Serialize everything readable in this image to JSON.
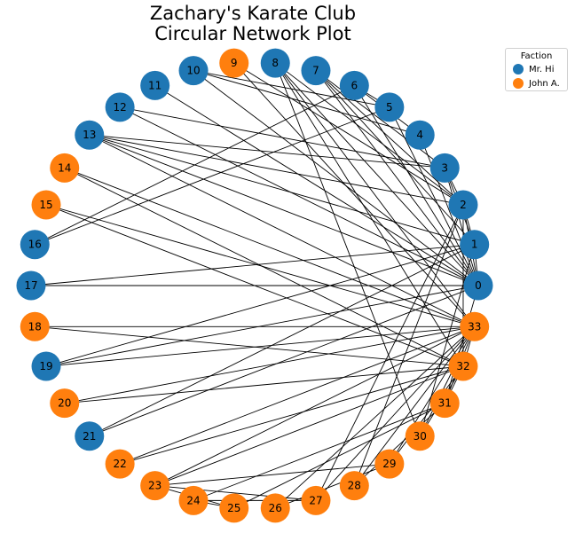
{
  "title": {
    "line1": "Zachary's Karate Club",
    "line2": "Circular Network Plot"
  },
  "colors": {
    "mr_hi": "#1f77b4",
    "john_a": "#ff7f0e",
    "edge": "#000000"
  },
  "legend": {
    "title": "Faction",
    "items": [
      {
        "label": "Mr. Hi",
        "color": "#1f77b4"
      },
      {
        "label": "John A.",
        "color": "#ff7f0e"
      }
    ]
  },
  "graph": {
    "layout": "circular",
    "nodes": [
      {
        "id": "0",
        "faction": "mr_hi"
      },
      {
        "id": "1",
        "faction": "mr_hi"
      },
      {
        "id": "2",
        "faction": "mr_hi"
      },
      {
        "id": "3",
        "faction": "mr_hi"
      },
      {
        "id": "4",
        "faction": "mr_hi"
      },
      {
        "id": "5",
        "faction": "mr_hi"
      },
      {
        "id": "6",
        "faction": "mr_hi"
      },
      {
        "id": "7",
        "faction": "mr_hi"
      },
      {
        "id": "8",
        "faction": "mr_hi"
      },
      {
        "id": "9",
        "faction": "john_a"
      },
      {
        "id": "10",
        "faction": "mr_hi"
      },
      {
        "id": "11",
        "faction": "mr_hi"
      },
      {
        "id": "12",
        "faction": "mr_hi"
      },
      {
        "id": "13",
        "faction": "mr_hi"
      },
      {
        "id": "14",
        "faction": "john_a"
      },
      {
        "id": "15",
        "faction": "john_a"
      },
      {
        "id": "16",
        "faction": "mr_hi"
      },
      {
        "id": "17",
        "faction": "mr_hi"
      },
      {
        "id": "18",
        "faction": "john_a"
      },
      {
        "id": "19",
        "faction": "mr_hi"
      },
      {
        "id": "20",
        "faction": "john_a"
      },
      {
        "id": "21",
        "faction": "mr_hi"
      },
      {
        "id": "22",
        "faction": "john_a"
      },
      {
        "id": "23",
        "faction": "john_a"
      },
      {
        "id": "24",
        "faction": "john_a"
      },
      {
        "id": "25",
        "faction": "john_a"
      },
      {
        "id": "26",
        "faction": "john_a"
      },
      {
        "id": "27",
        "faction": "john_a"
      },
      {
        "id": "28",
        "faction": "john_a"
      },
      {
        "id": "29",
        "faction": "john_a"
      },
      {
        "id": "30",
        "faction": "john_a"
      },
      {
        "id": "31",
        "faction": "john_a"
      },
      {
        "id": "32",
        "faction": "john_a"
      },
      {
        "id": "33",
        "faction": "john_a"
      }
    ],
    "edges": [
      [
        0,
        1
      ],
      [
        0,
        2
      ],
      [
        0,
        3
      ],
      [
        0,
        4
      ],
      [
        0,
        5
      ],
      [
        0,
        6
      ],
      [
        0,
        7
      ],
      [
        0,
        8
      ],
      [
        0,
        10
      ],
      [
        0,
        11
      ],
      [
        0,
        12
      ],
      [
        0,
        13
      ],
      [
        0,
        17
      ],
      [
        0,
        19
      ],
      [
        0,
        21
      ],
      [
        0,
        31
      ],
      [
        1,
        2
      ],
      [
        1,
        3
      ],
      [
        1,
        7
      ],
      [
        1,
        13
      ],
      [
        1,
        17
      ],
      [
        1,
        19
      ],
      [
        1,
        21
      ],
      [
        1,
        30
      ],
      [
        2,
        3
      ],
      [
        2,
        7
      ],
      [
        2,
        8
      ],
      [
        2,
        9
      ],
      [
        2,
        13
      ],
      [
        2,
        27
      ],
      [
        2,
        28
      ],
      [
        2,
        32
      ],
      [
        3,
        7
      ],
      [
        3,
        12
      ],
      [
        3,
        13
      ],
      [
        4,
        6
      ],
      [
        4,
        10
      ],
      [
        5,
        6
      ],
      [
        5,
        10
      ],
      [
        5,
        16
      ],
      [
        6,
        16
      ],
      [
        8,
        30
      ],
      [
        8,
        32
      ],
      [
        8,
        33
      ],
      [
        9,
        33
      ],
      [
        13,
        33
      ],
      [
        14,
        32
      ],
      [
        14,
        33
      ],
      [
        15,
        32
      ],
      [
        15,
        33
      ],
      [
        18,
        32
      ],
      [
        18,
        33
      ],
      [
        19,
        33
      ],
      [
        20,
        32
      ],
      [
        20,
        33
      ],
      [
        22,
        32
      ],
      [
        22,
        33
      ],
      [
        23,
        25
      ],
      [
        23,
        27
      ],
      [
        23,
        29
      ],
      [
        23,
        32
      ],
      [
        23,
        33
      ],
      [
        24,
        25
      ],
      [
        24,
        27
      ],
      [
        24,
        31
      ],
      [
        25,
        31
      ],
      [
        26,
        29
      ],
      [
        26,
        33
      ],
      [
        27,
        33
      ],
      [
        28,
        31
      ],
      [
        28,
        33
      ],
      [
        29,
        32
      ],
      [
        29,
        33
      ],
      [
        30,
        32
      ],
      [
        30,
        33
      ],
      [
        31,
        32
      ],
      [
        31,
        33
      ],
      [
        32,
        33
      ]
    ]
  }
}
